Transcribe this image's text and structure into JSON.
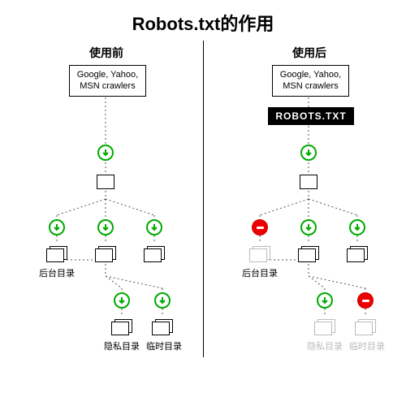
{
  "title": "Robots.txt的作用",
  "left": {
    "subtitle": "使用前",
    "crawlers": "Google, Yahoo,\nMSN crawlers",
    "labels": {
      "backend": "后台目录",
      "privacy": "隐私目录",
      "temp": "临时目录"
    }
  },
  "right": {
    "subtitle": "使用后",
    "crawlers": "Google, Yahoo,\nMSN crawlers",
    "robots": "ROBOTS.TXT",
    "labels": {
      "backend": "后台目录",
      "privacy": "隐私目录",
      "temp": "临时目录"
    }
  },
  "colors": {
    "allow_stroke": "#00aa00",
    "deny_bg": "#ee0000",
    "deny_border": "#cc0000",
    "faded": "#bbbbbb",
    "line": "#666666"
  },
  "diagram": {
    "type": "tree",
    "node_style": "page-rect",
    "connector_style": "dotted",
    "marker_allow": "green-circle-arrow-down",
    "marker_deny": "red-no-entry"
  }
}
